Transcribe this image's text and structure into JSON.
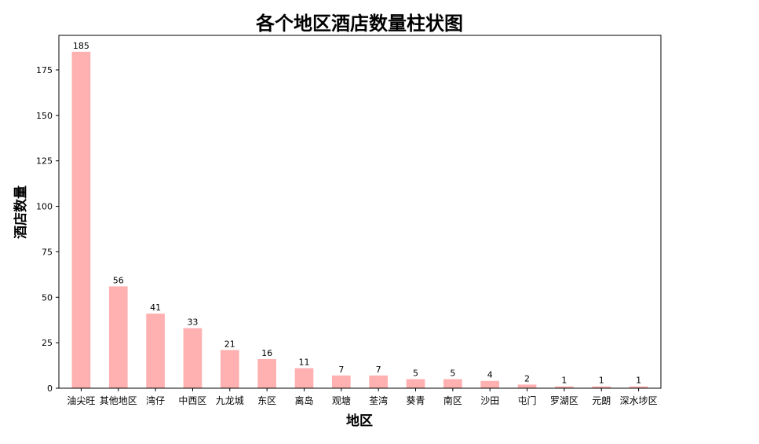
{
  "chart_data": {
    "type": "bar",
    "title": "各个地区酒店数量柱状图",
    "xlabel": "地区",
    "ylabel": "酒店数量",
    "categories": [
      "油尖旺",
      "其他地区",
      "湾仔",
      "中西区",
      "九龙城",
      "东区",
      "离岛",
      "观塘",
      "荃湾",
      "葵青",
      "南区",
      "沙田",
      "屯门",
      "罗湖区",
      "元朗",
      "深水埗区"
    ],
    "values": [
      185,
      56,
      41,
      33,
      21,
      16,
      11,
      7,
      7,
      5,
      5,
      4,
      2,
      1,
      1,
      1
    ],
    "ylim": [
      0,
      194
    ],
    "yticks": [
      0,
      25,
      50,
      75,
      100,
      125,
      150,
      175
    ],
    "bar_color": "#ffb0b0",
    "grid": false,
    "data_labels": true
  }
}
